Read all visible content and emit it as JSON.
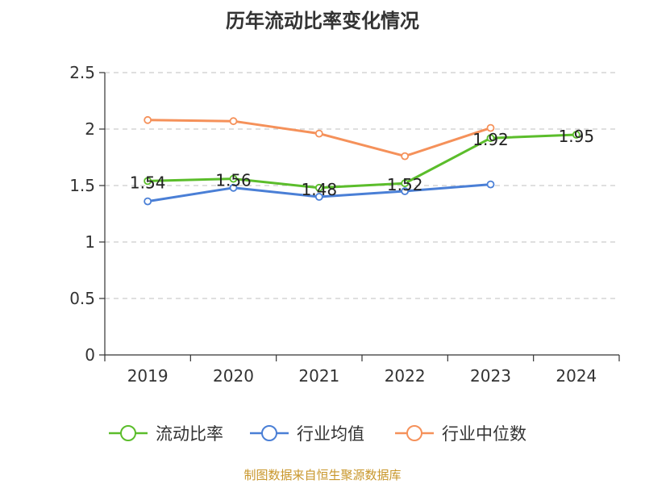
{
  "chart_data": {
    "type": "line",
    "title": "历年流动比率变化情况",
    "categories": [
      "2019",
      "2020",
      "2021",
      "2022",
      "2023",
      "2024"
    ],
    "ylim": [
      0,
      2.5
    ],
    "yticks": [
      "0",
      "0.5",
      "1",
      "1.5",
      "2",
      "2.5"
    ],
    "grid": true,
    "legend_position": "bottom",
    "series": [
      {
        "name": "流动比率",
        "color": "#5bbd2b",
        "values": [
          1.54,
          1.56,
          1.48,
          1.52,
          1.92,
          1.95
        ],
        "labels": [
          "1.54",
          "1.56",
          "1.48",
          "1.52",
          "1.92",
          "1.95"
        ]
      },
      {
        "name": "行业均值",
        "color": "#4a7fd6",
        "values": [
          1.36,
          1.48,
          1.4,
          1.45,
          1.51,
          null
        ]
      },
      {
        "name": "行业中位数",
        "color": "#f5915a",
        "values": [
          2.08,
          2.07,
          1.96,
          1.76,
          2.01,
          null
        ]
      }
    ]
  },
  "source_text": "制图数据来自恒生聚源数据库"
}
